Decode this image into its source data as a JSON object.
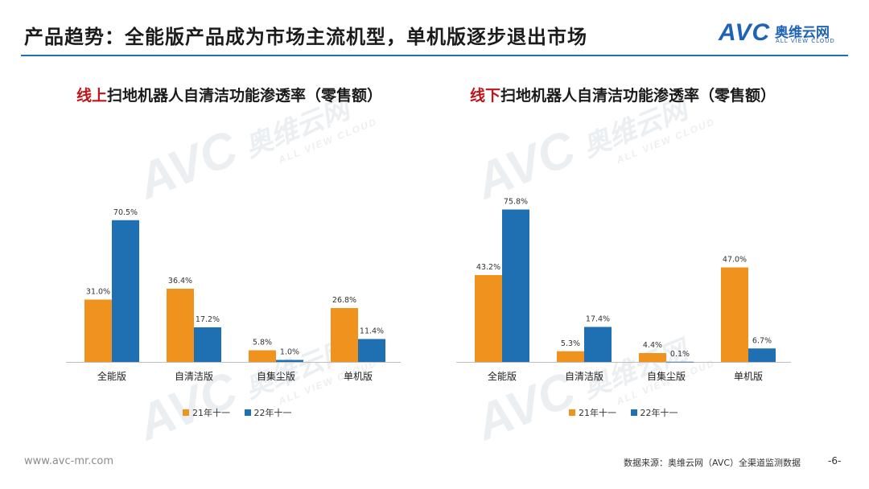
{
  "header": {
    "title": "产品趋势：全能版产品成为市场主流机型，单机版逐步退出市场"
  },
  "logo": {
    "mark": "AVC",
    "cn": "奥维云网",
    "en": "ALL VIEW CLOUD"
  },
  "watermark": {
    "mark": "AVC",
    "cn": "奥维云网",
    "en": "ALL VIEW CLOUD"
  },
  "colors": {
    "series_2021": "#f0921e",
    "series_2022": "#1f6fb3",
    "accent_red": "#c0161b",
    "rule": "#1f6fb3"
  },
  "chart_data": [
    {
      "type": "bar",
      "title_highlight": "线上",
      "title_rest": "扫地机器人自清洁功能渗透率（零售额）",
      "categories": [
        "全能版",
        "自清洁版",
        "自集尘版",
        "单机版"
      ],
      "series": [
        {
          "name": "21年十一",
          "values": [
            31.0,
            36.4,
            5.8,
            26.8
          ],
          "labels": [
            "31.0%",
            "36.4%",
            "5.8%",
            "26.8%"
          ]
        },
        {
          "name": "22年十一",
          "values": [
            70.5,
            17.2,
            1.0,
            11.4
          ],
          "labels": [
            "70.5%",
            "17.2%",
            "1.0%",
            "11.4%"
          ]
        }
      ],
      "ylim": [
        0,
        80
      ],
      "grid": false,
      "legend": "bottom-center"
    },
    {
      "type": "bar",
      "title_highlight": "线下",
      "title_rest": "扫地机器人自清洁功能渗透率（零售额）",
      "categories": [
        "全能版",
        "自清洁版",
        "自集尘版",
        "单机版"
      ],
      "series": [
        {
          "name": "21年十一",
          "values": [
            43.2,
            5.3,
            4.4,
            47.0
          ],
          "labels": [
            "43.2%",
            "5.3%",
            "4.4%",
            "47.0%"
          ]
        },
        {
          "name": "22年十一",
          "values": [
            75.8,
            17.4,
            0.1,
            6.7
          ],
          "labels": [
            "75.8%",
            "17.4%",
            "0.1%",
            "6.7%"
          ]
        }
      ],
      "ylim": [
        0,
        80
      ],
      "grid": false,
      "legend": "bottom-center"
    }
  ],
  "footer": {
    "url": "www.avc-mr.com",
    "source": "数据来源：奥维云网（AVC）全渠道监测数据",
    "page": "-6-"
  }
}
